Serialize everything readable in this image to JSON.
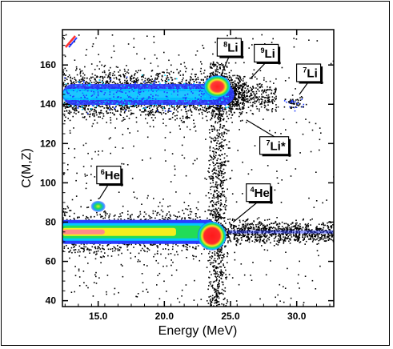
{
  "chart_data": {
    "type": "scatter",
    "subtype": "density",
    "xlabel": "Energy  (MeV)",
    "ylabel": "C(M,Z)",
    "xlim": [
      12.3,
      32.8
    ],
    "ylim": [
      37,
      178
    ],
    "xticks": [
      15.0,
      20.0,
      25.0,
      30.0
    ],
    "xtick_labels": [
      "15.0",
      "20.0",
      "25.0",
      "30.0"
    ],
    "yticks": [
      40,
      60,
      80,
      100,
      120,
      140,
      160
    ],
    "ytick_labels": [
      "40",
      "60",
      "80",
      "100",
      "120",
      "140",
      "160"
    ],
    "grid": false,
    "colormap": [
      "#000000",
      "#1f3cff",
      "#00d8ff",
      "#19e04a",
      "#f2ee1e",
      "#ff8a8a",
      "#ff2d2d"
    ],
    "bands": [
      {
        "name_mass": "8",
        "name_element": "Li",
        "x_start": 12.3,
        "x_end": 24.8,
        "y": 145,
        "peak_x": 24.0,
        "peak_y": 149
      },
      {
        "name_mass": "4",
        "name_element": "He",
        "x_start": 12.3,
        "x_end": 23.0,
        "y": 75,
        "peak_x": 23.6,
        "peak_y": 73
      }
    ],
    "blobs": [
      {
        "name_mass": "6",
        "name_element": "He",
        "x": 15.0,
        "y": 88
      },
      {
        "name_mass": "7",
        "name_element": "Li",
        "x": 29.8,
        "y": 141
      }
    ],
    "annotations": [
      {
        "mass": "8",
        "element": "Li",
        "suffix": "",
        "label_x": 24.9,
        "label_y": 169,
        "arrow_to_x": 24.3,
        "arrow_to_y": 155
      },
      {
        "mass": "9",
        "element": "Li",
        "suffix": "",
        "label_x": 27.7,
        "label_y": 166,
        "arrow_to_x": 26.5,
        "arrow_to_y": 153
      },
      {
        "mass": "7",
        "element": "Li",
        "suffix": "",
        "label_x": 30.9,
        "label_y": 156,
        "arrow_to_x": 30.2,
        "arrow_to_y": 145
      },
      {
        "mass": "7",
        "element": "Li",
        "suffix": "*",
        "label_x": 28.3,
        "label_y": 119,
        "arrow_to_x": 26.2,
        "arrow_to_y": 132
      },
      {
        "mass": "6",
        "element": "He",
        "suffix": "",
        "label_x": 15.8,
        "label_y": 104,
        "arrow_to_x": 15.1,
        "arrow_to_y": 92
      },
      {
        "mass": "4",
        "element": "He",
        "suffix": "",
        "label_x": 27.1,
        "label_y": 95,
        "arrow_to_x": 25.2,
        "arrow_to_y": 80
      }
    ]
  }
}
